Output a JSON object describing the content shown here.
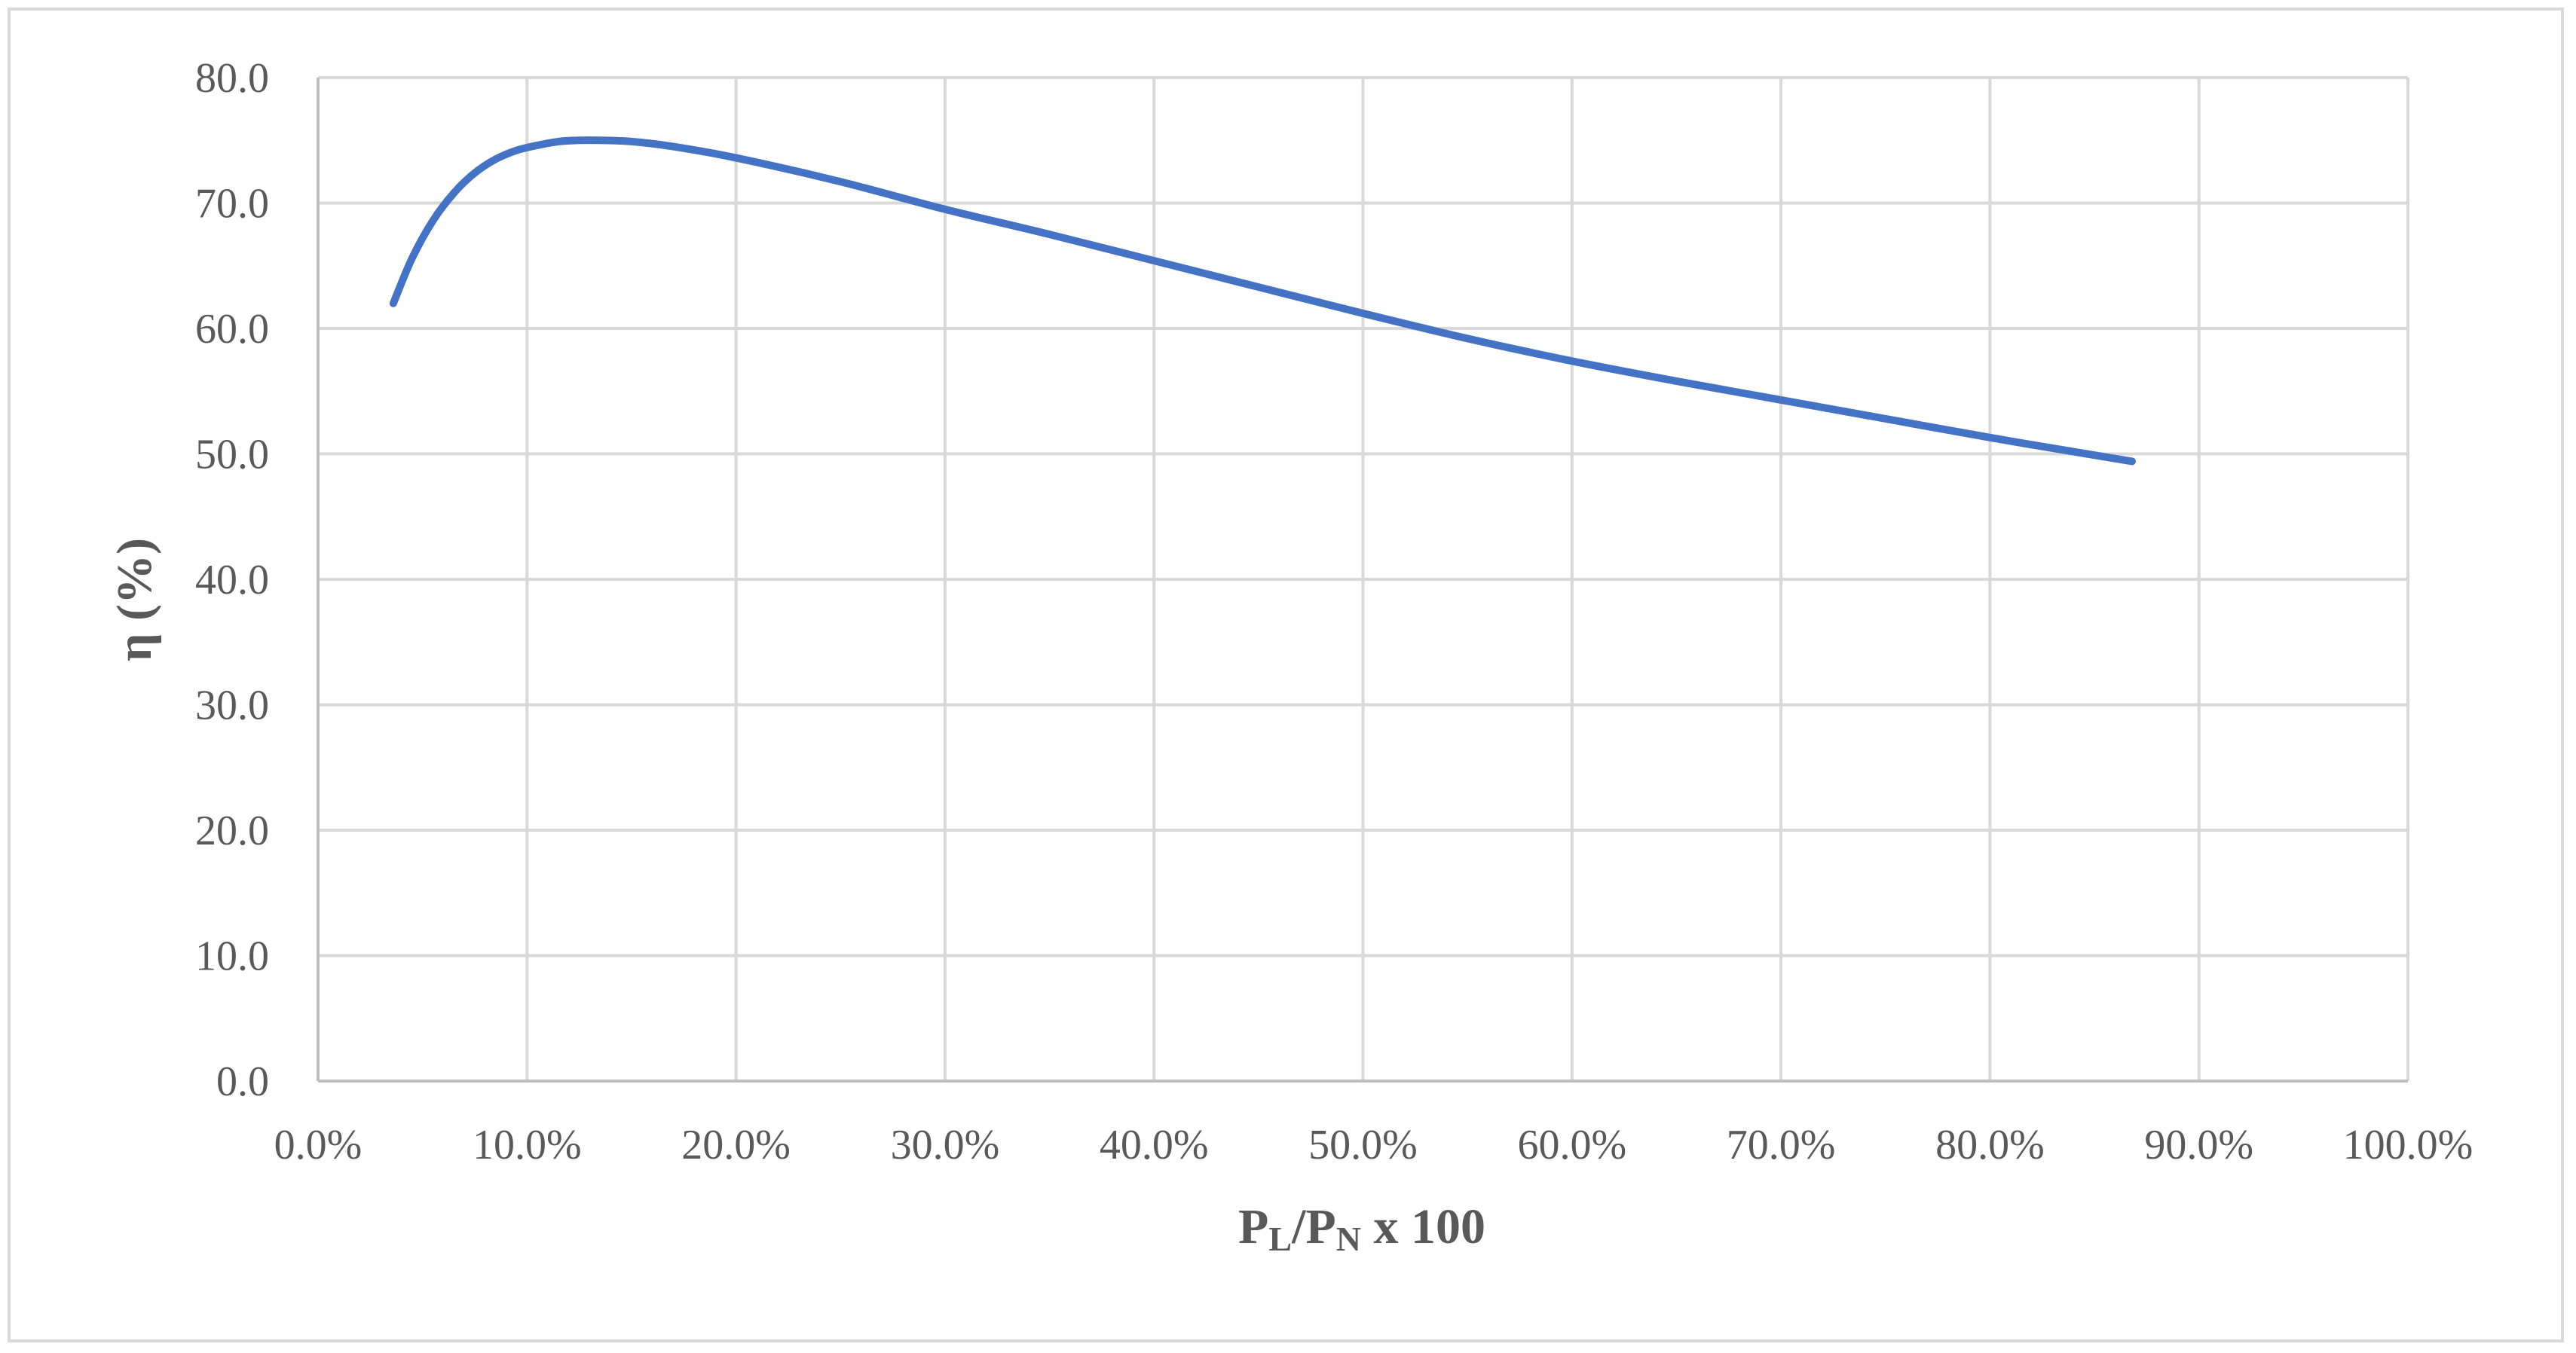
{
  "chart_data": {
    "type": "line",
    "title": "",
    "xlabel": {
      "parts": [
        {
          "text": "P",
          "sub": false
        },
        {
          "text": "L",
          "sub": true
        },
        {
          "text": "/P",
          "sub": false
        },
        {
          "text": "N",
          "sub": true
        },
        {
          "text": " x 100",
          "sub": false
        }
      ]
    },
    "ylabel": "η (%)",
    "xlim": [
      0,
      100
    ],
    "ylim": [
      0,
      80
    ],
    "x_ticks": [
      0,
      10,
      20,
      30,
      40,
      50,
      60,
      70,
      80,
      90,
      100
    ],
    "x_tick_labels": [
      "0.0%",
      "10.0%",
      "20.0%",
      "30.0%",
      "40.0%",
      "50.0%",
      "60.0%",
      "70.0%",
      "80.0%",
      "90.0%",
      "100.0%"
    ],
    "y_ticks": [
      0,
      10,
      20,
      30,
      40,
      50,
      60,
      70,
      80
    ],
    "y_tick_labels": [
      "0.0",
      "10.0",
      "20.0",
      "30.0",
      "40.0",
      "50.0",
      "60.0",
      "70.0",
      "80.0"
    ],
    "grid": true,
    "legend": "none",
    "series": [
      {
        "color": "#4472c4",
        "x": [
          3.6,
          4.5,
          5.5,
          6.5,
          7.5,
          8.5,
          9.5,
          10.5,
          11.5,
          12.5,
          13.5,
          15,
          17,
          20,
          25,
          30,
          35,
          40,
          45,
          50,
          55,
          60,
          65,
          70,
          75,
          80,
          85,
          86.8
        ],
        "y": [
          62.0,
          65.6,
          68.6,
          70.8,
          72.4,
          73.5,
          74.2,
          74.6,
          74.9,
          75.0,
          75.0,
          74.9,
          74.5,
          73.6,
          71.7,
          69.5,
          67.5,
          65.4,
          63.3,
          61.2,
          59.2,
          57.4,
          55.8,
          54.3,
          52.8,
          51.3,
          49.9,
          49.4
        ]
      }
    ]
  }
}
